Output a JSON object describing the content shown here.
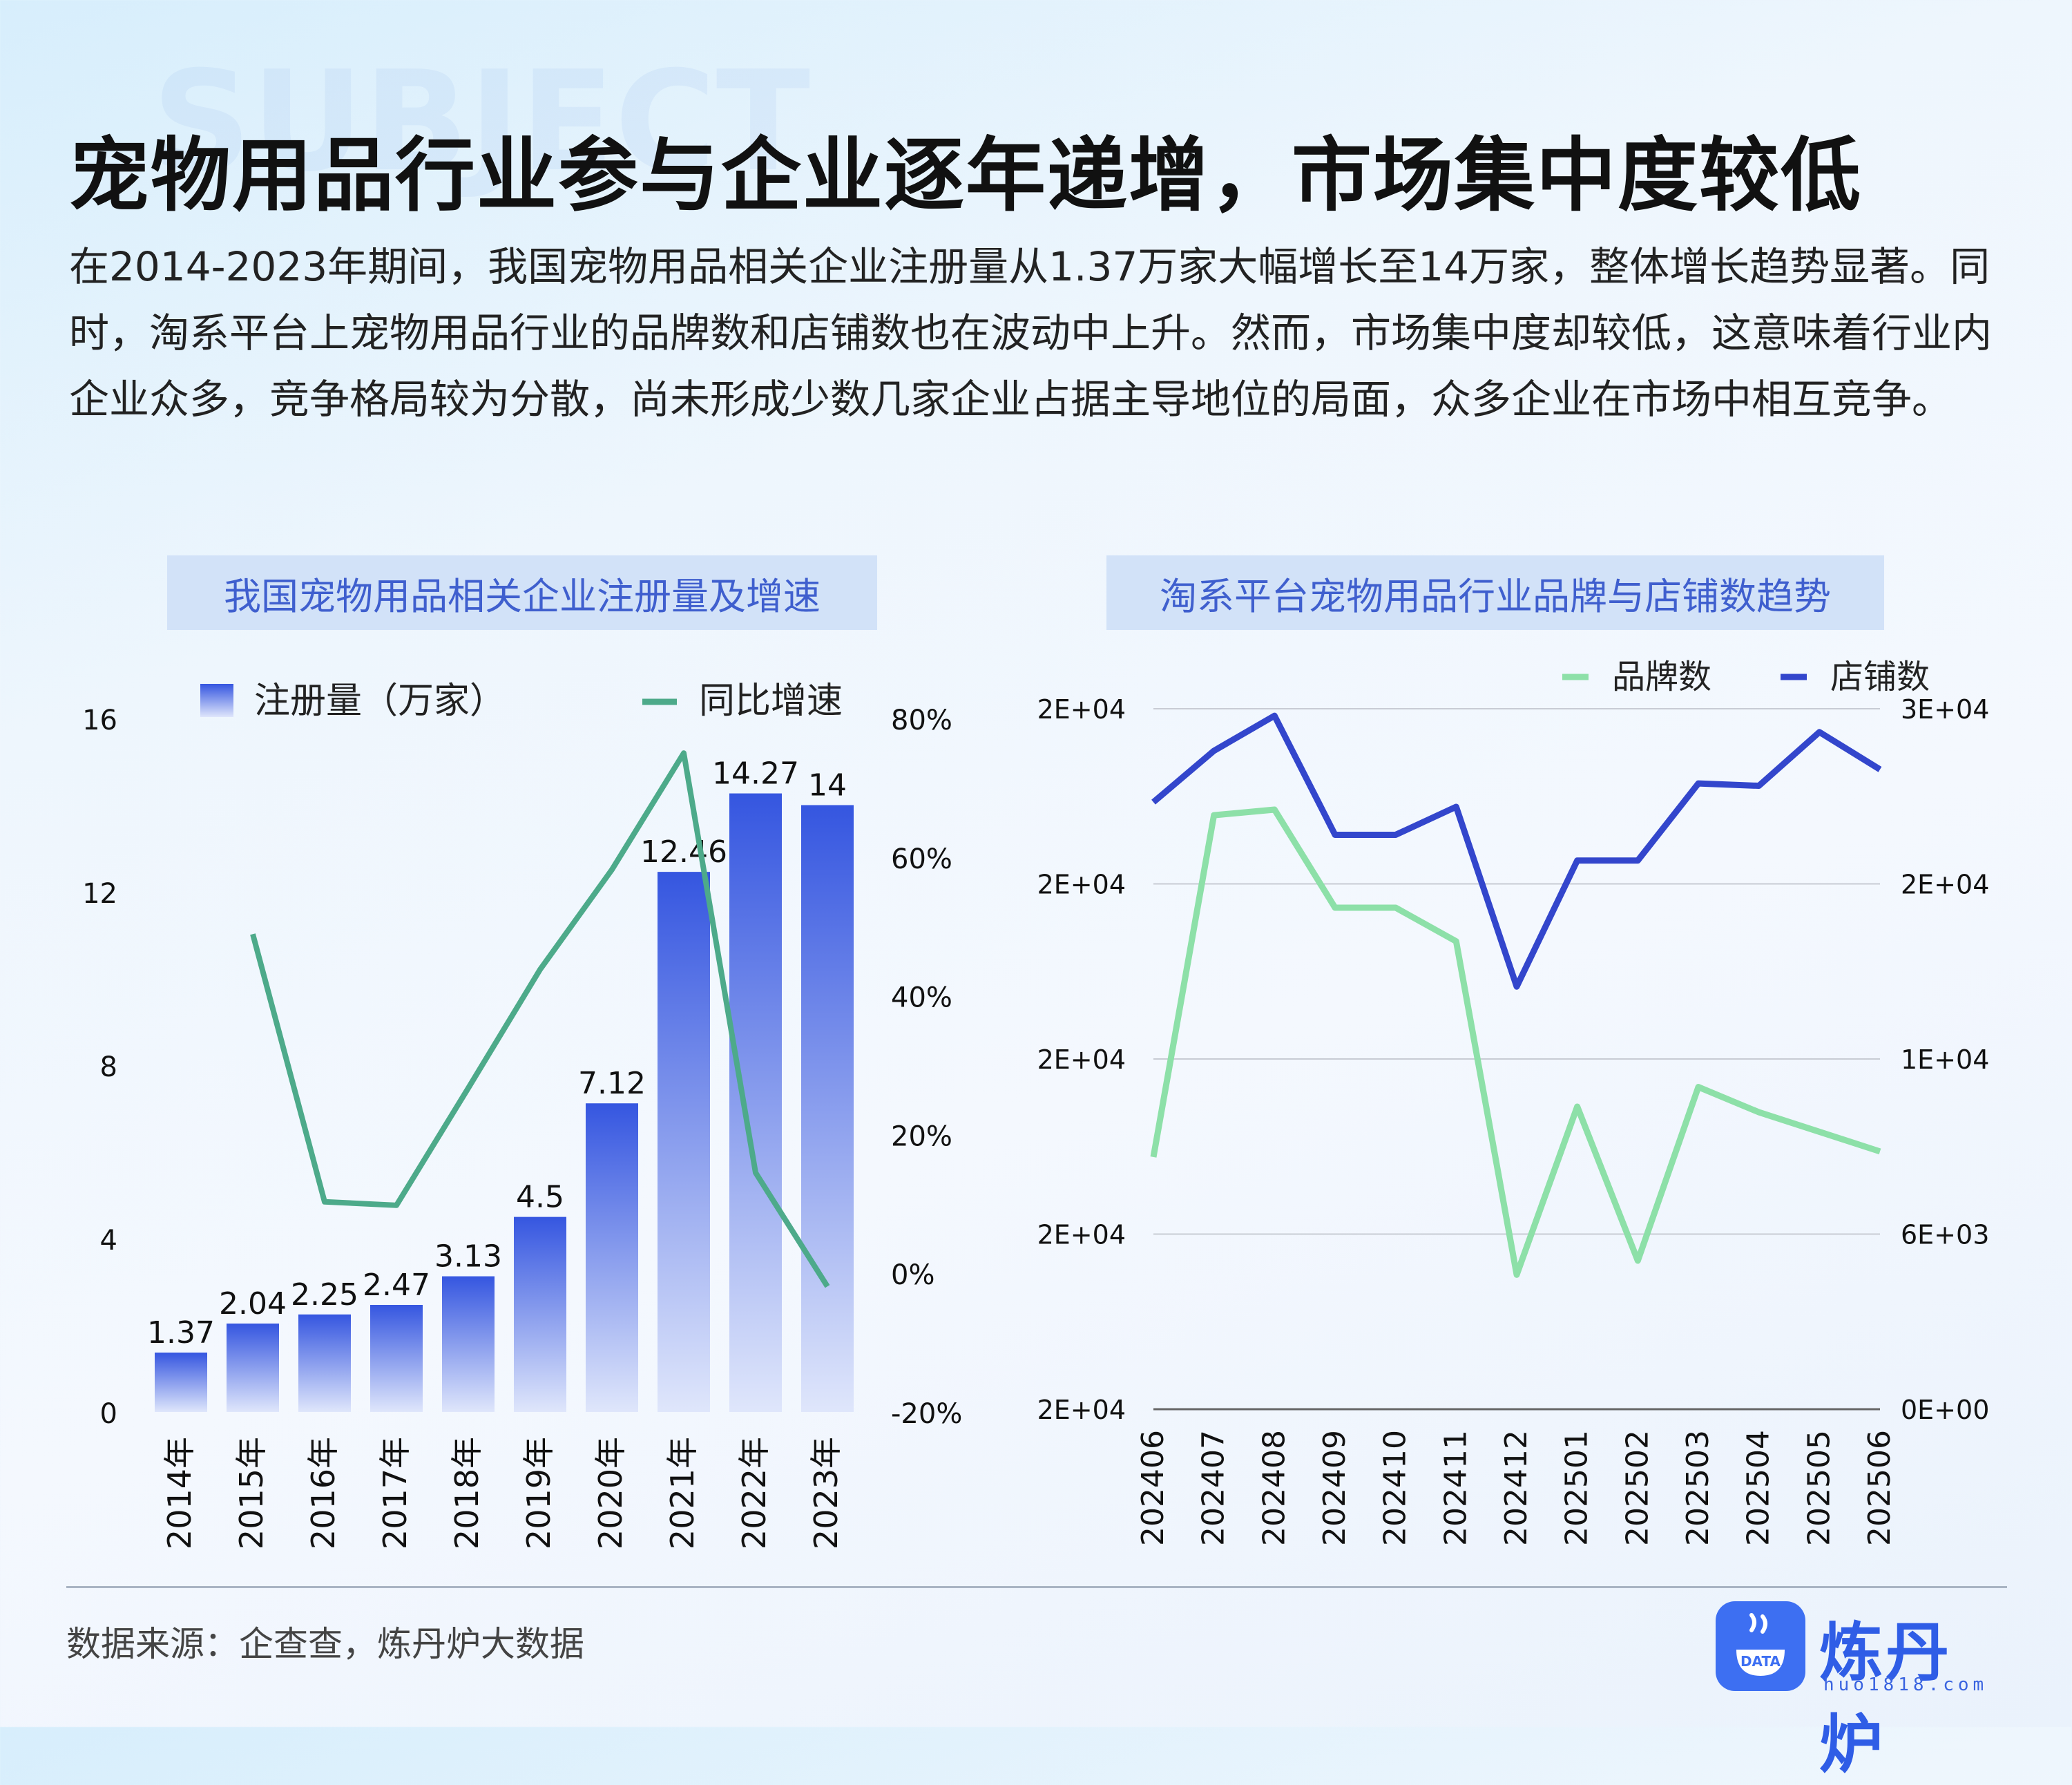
{
  "headline": "宠物用品行业参与企业逐年递增，市场集中度较低",
  "intro": "在2014-2023年期间，我国宠物用品相关企业注册量从1.37万家大幅增长至14万家，整体增长趋势显著。同时，淘系平台上宠物用品行业的品牌数和店铺数也在波动中上升。然而，市场集中度却较低，这意味着行业内企业众多，竞争格局较为分散，尚未形成少数几家企业占据主导地位的局面，众多企业在市场中相互竞争。",
  "chart_data": [
    {
      "type": "bar",
      "title": "我国宠物用品相关企业注册量及增速",
      "categories": [
        "2014年",
        "2015年",
        "2016年",
        "2017年",
        "2018年",
        "2019年",
        "2020年",
        "2021年",
        "2022年",
        "2023年"
      ],
      "series": [
        {
          "name": "注册量（万家）",
          "kind": "bar",
          "axis": "left",
          "values": [
            1.37,
            2.04,
            2.25,
            2.47,
            3.13,
            4.5,
            7.12,
            12.46,
            14.27,
            14
          ],
          "labels": [
            "1.37",
            "2.04",
            "2.25",
            "2.47",
            "3.13",
            "4.5",
            "7.12",
            "12.46",
            "14.27",
            "14"
          ],
          "color": "#4466e6"
        },
        {
          "name": "同比增速",
          "kind": "line",
          "axis": "right",
          "values": [
            null,
            48.9,
            10.3,
            9.8,
            26.7,
            43.8,
            58.2,
            75.0,
            14.5,
            -1.9
          ],
          "color": "#4daa8a"
        }
      ],
      "ylim_left": [
        0,
        16
      ],
      "yticks_left": [
        "0",
        "4",
        "8",
        "12",
        "16"
      ],
      "ylim_right": [
        -20,
        80
      ],
      "yticks_right": [
        "-20%",
        "0%",
        "20%",
        "40%",
        "60%",
        "80%"
      ],
      "legend_position": "top"
    },
    {
      "type": "line",
      "title": "淘系平台宠物用品行业品牌与店铺数趋势",
      "categories": [
        "202406",
        "202407",
        "202408",
        "202409",
        "202410",
        "202411",
        "202412",
        "202501",
        "202502",
        "202503",
        "202504",
        "202505",
        "202506"
      ],
      "series": [
        {
          "name": "品牌数",
          "axis": "left",
          "values": [
            19400,
            20620,
            20640,
            20290,
            20290,
            20170,
            18980,
            19580,
            19030,
            19650,
            19560,
            19490,
            19420
          ],
          "color": "#8de0a8"
        },
        {
          "name": "店铺数",
          "axis": "right",
          "values": [
            26000,
            28200,
            29700,
            24600,
            24600,
            25800,
            18100,
            23500,
            23500,
            26800,
            26700,
            29000,
            27400
          ],
          "color": "#3346cc"
        }
      ],
      "ylim_left": [
        18500,
        21000
      ],
      "yticks_left": [
        "2E+04",
        "2E+04",
        "2E+04",
        "2E+04",
        "2E+04"
      ],
      "ylim_right": [
        0,
        30000
      ],
      "yticks_right": [
        "0E+00",
        "6E+03",
        "1E+04",
        "2E+04",
        "3E+04"
      ],
      "legend_position": "top-right"
    }
  ],
  "source": "数据来源：企查查，炼丹炉大数据",
  "logo": {
    "name": "炼丹炉",
    "url": "huo1818.com",
    "mark_text": "DATA"
  },
  "colors": {
    "accent": "#3f5fce",
    "title_bg": "#d2e2f8",
    "line_green": "#4daa8a",
    "bar_blue": "#4466e6"
  }
}
